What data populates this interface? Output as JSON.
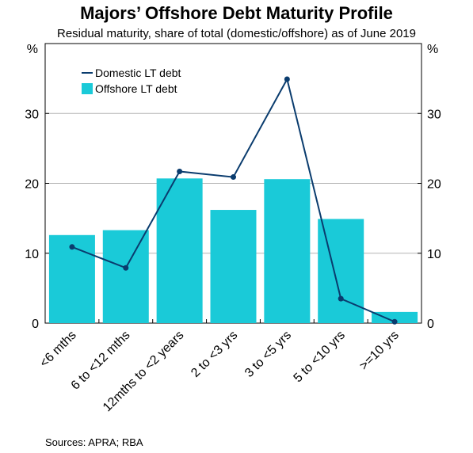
{
  "title": "Majors’ Offshore Debt Maturity Profile",
  "subtitle": "Residual maturity, share of total (domestic/offshore) as of June 2019",
  "source": "Sources:   APRA; RBA",
  "chart_data": {
    "type": "bar",
    "categories": [
      "<6 mths",
      "6 to <12 mths",
      "12mths to <2 years",
      "2 to <3 yrs",
      "3 to <5 yrs",
      "5 to <10 yrs",
      ">=10 yrs"
    ],
    "series": [
      {
        "name": "Offshore LT debt",
        "type": "bar",
        "color": "#1ACAD8",
        "values": [
          12.6,
          13.3,
          20.7,
          16.2,
          20.6,
          14.9,
          1.6
        ]
      },
      {
        "name": "Domestic LT debt",
        "type": "line",
        "color": "#0A3C6E",
        "values": [
          10.9,
          7.9,
          21.7,
          20.9,
          34.9,
          3.5,
          0.2
        ]
      }
    ],
    "ylim": [
      0,
      40
    ],
    "yticks": [
      0,
      10,
      20,
      30
    ],
    "ylabel_left": "%",
    "ylabel_right": "%",
    "grid": true,
    "legend": "top-left"
  }
}
